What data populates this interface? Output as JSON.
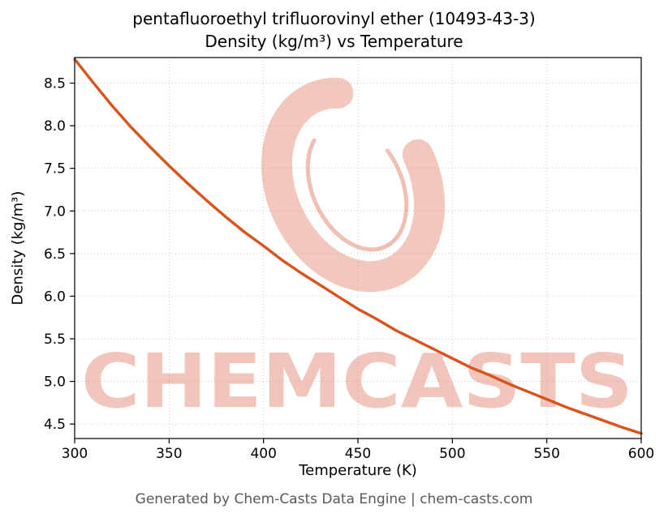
{
  "title_line1": "pentafluoroethyl trifluorovinyl ether (10493-43-3)",
  "title_line2": "Density (kg/m³) vs Temperature",
  "xlabel": "Temperature (K)",
  "ylabel": "Density (kg/m³)",
  "footer": "Generated by Chem-Casts Data Engine | chem-casts.com",
  "watermark": {
    "text": "CHEMCASTS",
    "color": "#dd6f55"
  },
  "chart_data": {
    "type": "line",
    "title": "pentafluoroethyl trifluorovinyl ether (10493-43-3) — Density (kg/m³) vs Temperature",
    "xlabel": "Temperature (K)",
    "ylabel": "Density (kg/m³)",
    "x": [
      300,
      310,
      320,
      330,
      340,
      350,
      360,
      370,
      380,
      390,
      400,
      410,
      420,
      430,
      440,
      450,
      460,
      470,
      480,
      490,
      500,
      510,
      520,
      530,
      540,
      550,
      560,
      570,
      580,
      590,
      600
    ],
    "series": [
      {
        "name": "Density",
        "values": [
          8.78,
          8.5,
          8.23,
          7.98,
          7.75,
          7.53,
          7.32,
          7.12,
          6.93,
          6.75,
          6.59,
          6.42,
          6.27,
          6.13,
          5.99,
          5.85,
          5.73,
          5.6,
          5.49,
          5.38,
          5.27,
          5.16,
          5.07,
          4.97,
          4.88,
          4.79,
          4.7,
          4.62,
          4.54,
          4.46,
          4.39
        ]
      }
    ],
    "line_color": "#d9531b",
    "xlim": [
      300,
      600
    ],
    "ylim": [
      4.33,
      8.8
    ],
    "xticks": [
      300,
      350,
      400,
      450,
      500,
      550,
      600
    ],
    "yticks": [
      4.5,
      5.0,
      5.5,
      6.0,
      6.5,
      7.0,
      7.5,
      8.0,
      8.5
    ],
    "grid": true,
    "legend_position": "none"
  }
}
